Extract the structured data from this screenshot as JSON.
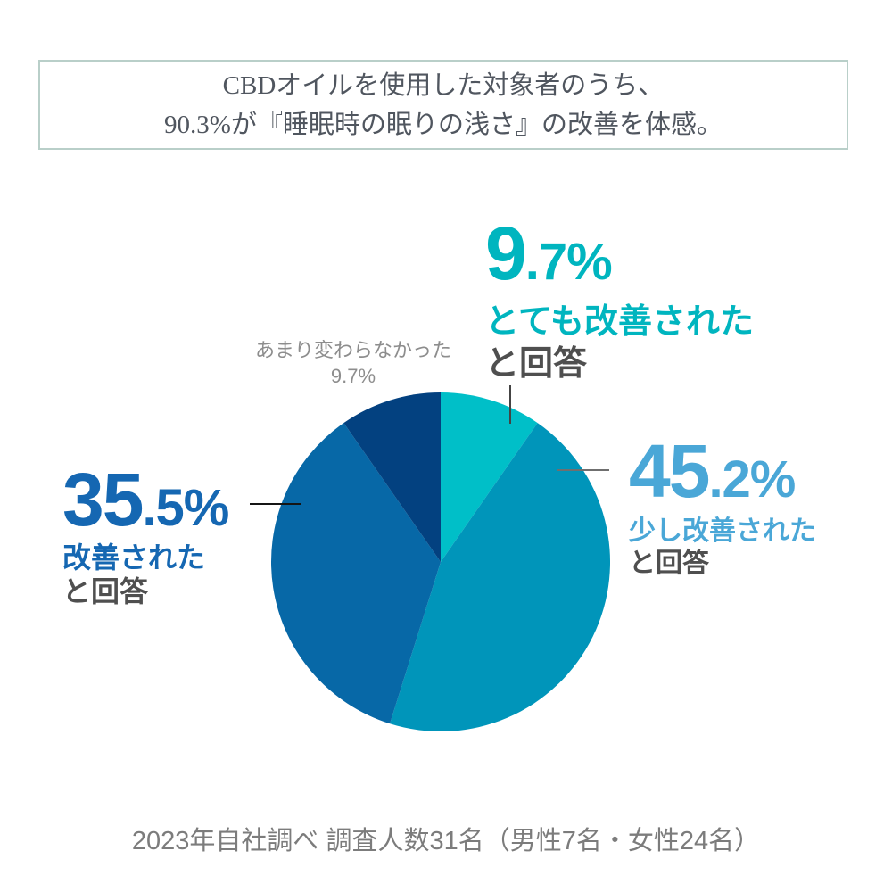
{
  "header": {
    "line1": "CBDオイルを使用した対象者のうち、",
    "line2": "90.3%が『睡眠時の眠りの浅さ』の改善を体感。",
    "border_color": "#b9cfc9",
    "text_color": "#50565f"
  },
  "chart_data": {
    "type": "pie",
    "title": "睡眠時の眠りの浅さの改善体感",
    "start_angle_deg": 0,
    "direction": "clockwise",
    "legend_position": "callout-labels",
    "slices": [
      {
        "label": "とても改善された",
        "value_pct": 9.7,
        "color": "#00bfc8"
      },
      {
        "label": "少し改善された",
        "value_pct": 45.2,
        "color": "#0095ba"
      },
      {
        "label": "改善された",
        "value_pct": 35.5,
        "color": "#0768a7"
      },
      {
        "label": "あまり変わらなかった",
        "value_pct": 9.7,
        "color": "#034180"
      }
    ]
  },
  "callouts": {
    "suffix_color": "#4f4f4f",
    "very": {
      "pct_main": "9",
      "pct_sub": ".7%",
      "line1": "とても改善された",
      "line2": "と回答",
      "accent": "#00b5bf"
    },
    "slight": {
      "pct_main": "45",
      "pct_sub": ".2%",
      "line1": "少し改善された",
      "line2": "と回答",
      "accent": "#4aa7d7"
    },
    "improved": {
      "pct_main": "35",
      "pct_sub": ".5%",
      "line1": "改善された",
      "line2": "と回答",
      "accent": "#1567b2"
    },
    "unchanged": {
      "line1": "あまり変わらなかった",
      "line2": "9.7%",
      "color": "#8d8d8d"
    }
  },
  "footer": {
    "note": "2023年自社調べ 調査人数31名（男性7名・女性24名）",
    "color": "#7c7c7c"
  }
}
